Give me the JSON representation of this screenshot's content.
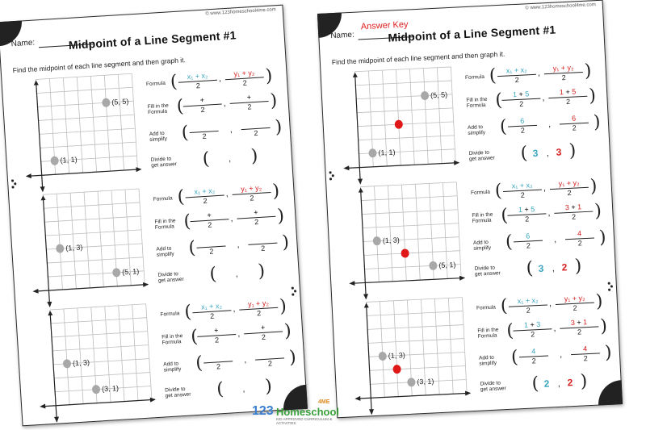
{
  "url": "© www.123homeschool4me.com",
  "name_label": "Name:",
  "answer_key_label": "Answer Key",
  "title": "Midpoint of a Line Segment #1",
  "instructions": "Find the midpoint of each line segment and then graph it.",
  "labels": {
    "formula": "Formula",
    "fill": "Fill in the Formula",
    "add": "Add to simplify",
    "divide": "Divide to get answer"
  },
  "formula": {
    "x_num": "x₁ + x₂",
    "y_num": "y₁ + y₂",
    "den": "2"
  },
  "colors": {
    "teal": "#3aa6c0",
    "red": "#d42020",
    "point_gray": "#a8a8a8",
    "midpoint": "#e01818"
  },
  "problems": [
    {
      "p1": {
        "label": "(1, 1)",
        "x": 1,
        "y": 1
      },
      "p2": {
        "label": "(5, 5)",
        "x": 5,
        "y": 5
      },
      "fill": {
        "x1": "1",
        "x2": "5",
        "y1": "1",
        "y2": "5"
      },
      "sum": {
        "x": "6",
        "y": "6"
      },
      "answer": {
        "x": "3",
        "y": "3"
      },
      "mid": {
        "x": 3,
        "y": 3
      }
    },
    {
      "p1": {
        "label": "(1, 3)",
        "x": 1,
        "y": 3
      },
      "p2": {
        "label": "(5, 1)",
        "x": 5,
        "y": 1
      },
      "fill": {
        "x1": "1",
        "x2": "5",
        "y1": "3",
        "y2": "1"
      },
      "sum": {
        "x": "6",
        "y": "4"
      },
      "answer": {
        "x": "3",
        "y": "2"
      },
      "mid": {
        "x": 3,
        "y": 2
      }
    },
    {
      "p1": {
        "label": "(1, 3)",
        "x": 1,
        "y": 3
      },
      "p2": {
        "label": "(3, 1)",
        "x": 3,
        "y": 1
      },
      "fill": {
        "x1": "1",
        "x2": "3",
        "y1": "3",
        "y2": "1"
      },
      "sum": {
        "x": "4",
        "y": "4"
      },
      "answer": {
        "x": "2",
        "y": "2"
      },
      "mid": {
        "x": 2,
        "y": 2
      }
    }
  ],
  "logo": {
    "numbers": "123",
    "word": "Homeschool",
    "suffix": "4ME",
    "tagline": "KID APPROVED CURRICULUM & ACTIVITIES"
  }
}
